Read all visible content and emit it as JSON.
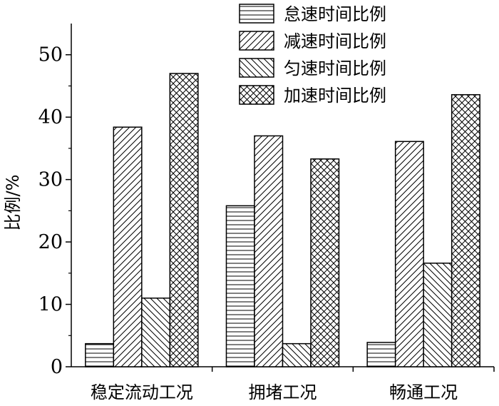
{
  "chart_data": {
    "type": "bar",
    "title": "",
    "xlabel": "",
    "ylabel": "比例/%",
    "ylim": [
      0,
      55
    ],
    "yticks": [
      0,
      10,
      20,
      30,
      40,
      50
    ],
    "grid": false,
    "legend_position": "top-right",
    "categories": [
      "稳定流动工况",
      "拥堵工况",
      "畅通工况"
    ],
    "series": [
      {
        "name": "怠速时间比例",
        "pattern": "horizontal",
        "values": [
          3.7,
          25.8,
          3.9
        ]
      },
      {
        "name": "减速时间比例",
        "pattern": "diagonal-up",
        "values": [
          38.4,
          37.0,
          36.1
        ]
      },
      {
        "name": "匀速时间比例",
        "pattern": "diagonal-down",
        "values": [
          11.0,
          3.7,
          16.6
        ]
      },
      {
        "name": "加速时间比例",
        "pattern": "crosshatch",
        "values": [
          47.0,
          33.3,
          43.6
        ]
      }
    ],
    "colors": {
      "bar_stroke": "#000000",
      "bar_fill": "#ffffff",
      "hatch": "#000000"
    }
  }
}
